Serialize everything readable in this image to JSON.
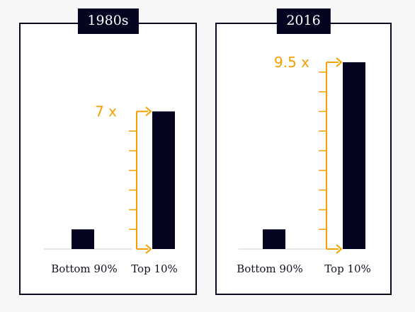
{
  "chart_data": [
    {
      "type": "bar",
      "title": "1980s",
      "categories": [
        "Bottom 90%",
        "Top 10%"
      ],
      "values": [
        1,
        7
      ],
      "multiplier_label": "7 x",
      "ylim": [
        0,
        9.5
      ]
    },
    {
      "type": "bar",
      "title": "2016",
      "categories": [
        "Bottom 90%",
        "Top 10%"
      ],
      "values": [
        1,
        9.5
      ],
      "multiplier_label": "9.5 x",
      "ylim": [
        0,
        9.5
      ]
    }
  ],
  "colors": {
    "bar": "#050521",
    "accent": "#f5a000",
    "baseline": "#dddddd",
    "border": "#0b0b1e"
  }
}
